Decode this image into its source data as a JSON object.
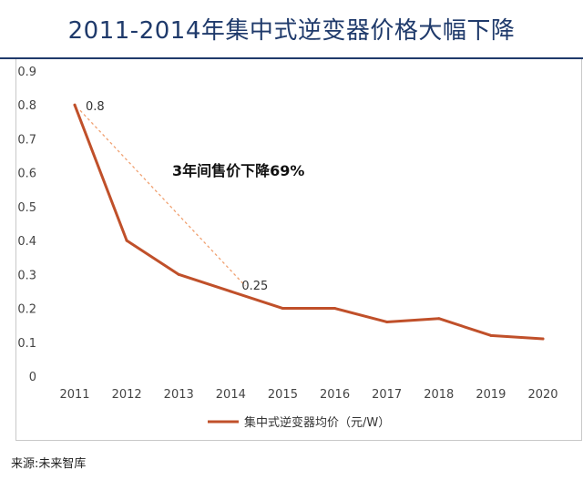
{
  "title": "2011-2014年集中式逆变器价格大幅下降",
  "source": "来源:未来智库",
  "colors": {
    "title": "#1f3a6b",
    "series": "#c0502a",
    "dashed": "#f0a070"
  },
  "chart_data": {
    "type": "line",
    "categories": [
      "2011",
      "2012",
      "2013",
      "2014",
      "2015",
      "2016",
      "2017",
      "2018",
      "2019",
      "2020"
    ],
    "series": [
      {
        "name": "集中式逆变器均价（元/W）",
        "values": [
          0.8,
          0.4,
          0.3,
          0.25,
          0.2,
          0.2,
          0.16,
          0.17,
          0.12,
          0.11
        ]
      }
    ],
    "ylim": [
      0,
      0.9
    ],
    "yticks": [
      "0",
      "0.1",
      "0.2",
      "0.3",
      "0.4",
      "0.5",
      "0.6",
      "0.7",
      "0.8",
      "0.9"
    ],
    "data_labels": [
      "0.8",
      "0.25"
    ],
    "annotation": "3年间售价下降69%",
    "legend_position": "bottom",
    "grid": false
  }
}
